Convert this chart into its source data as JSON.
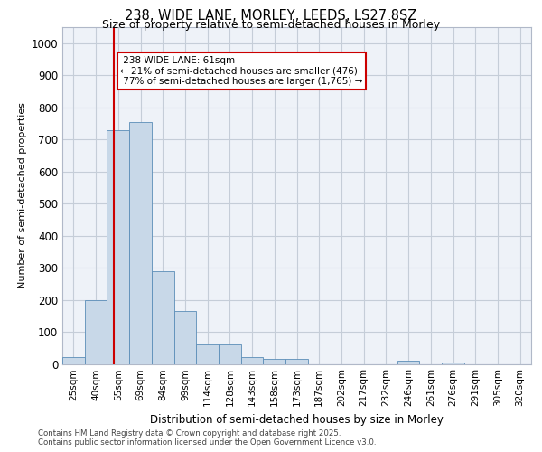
{
  "title_line1": "238, WIDE LANE, MORLEY, LEEDS, LS27 8SZ",
  "title_line2": "Size of property relative to semi-detached houses in Morley",
  "xlabel": "Distribution of semi-detached houses by size in Morley",
  "ylabel": "Number of semi-detached properties",
  "categories": [
    "25sqm",
    "40sqm",
    "55sqm",
    "69sqm",
    "84sqm",
    "99sqm",
    "114sqm",
    "128sqm",
    "143sqm",
    "158sqm",
    "173sqm",
    "187sqm",
    "202sqm",
    "217sqm",
    "232sqm",
    "246sqm",
    "261sqm",
    "276sqm",
    "291sqm",
    "305sqm",
    "320sqm"
  ],
  "values": [
    20,
    200,
    730,
    755,
    290,
    165,
    60,
    60,
    20,
    15,
    15,
    0,
    0,
    0,
    0,
    10,
    0,
    5,
    0,
    0,
    0
  ],
  "bar_color": "#c8d8e8",
  "bar_edge_color": "#5b8db8",
  "property_line_x": 1.82,
  "property_label": "238 WIDE LANE: 61sqm",
  "pct_smaller": "21%",
  "pct_smaller_count": "476",
  "pct_larger": "77%",
  "pct_larger_count": "1,765",
  "annotation_box_color": "#cc0000",
  "ylim": [
    0,
    1050
  ],
  "yticks": [
    0,
    100,
    200,
    300,
    400,
    500,
    600,
    700,
    800,
    900,
    1000
  ],
  "footer_line1": "Contains HM Land Registry data © Crown copyright and database right 2025.",
  "footer_line2": "Contains public sector information licensed under the Open Government Licence v3.0.",
  "bg_color": "#eef2f8",
  "grid_color": "#c5cdd8"
}
